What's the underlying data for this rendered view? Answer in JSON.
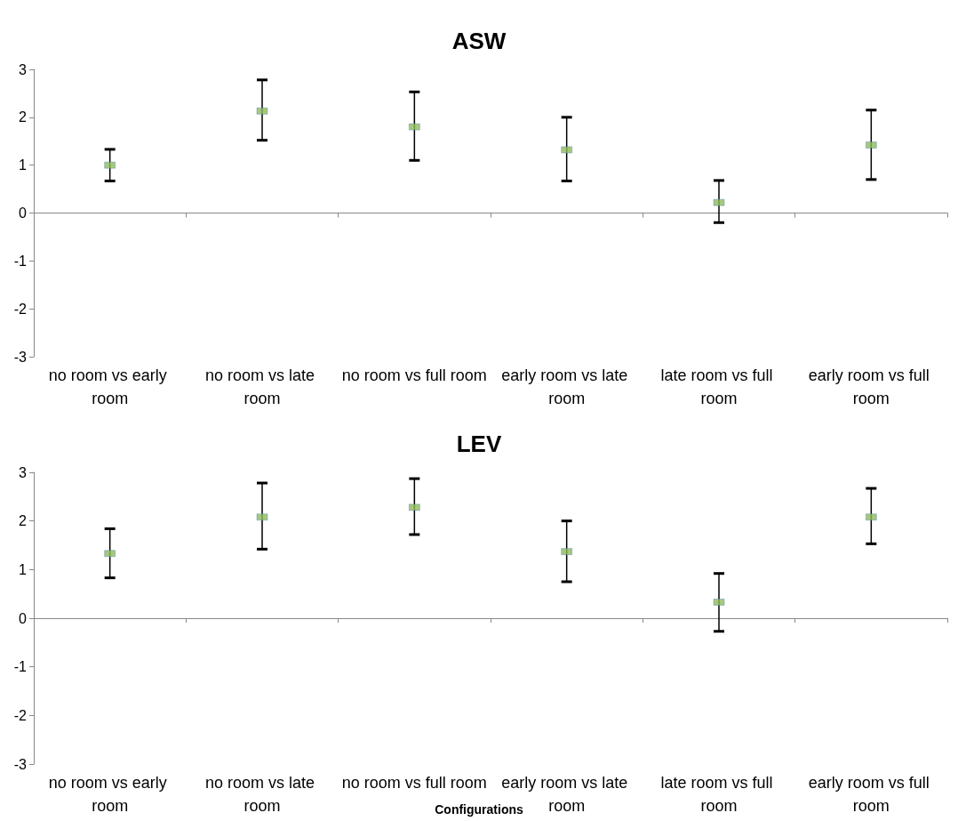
{
  "chart_data": [
    {
      "type": "scatter",
      "title": "ASW",
      "categories": [
        "no room vs early room",
        "no room vs late room",
        "no room vs full room",
        "early room vs late room",
        "late room vs full room",
        "early room vs full room"
      ],
      "series": [
        {
          "color": "#8fbc5a",
          "values": [
            1.0,
            2.13,
            1.8,
            1.32,
            0.22,
            1.42
          ],
          "errors": [
            [
              0.67,
              1.33
            ],
            [
              1.52,
              2.78
            ],
            [
              1.1,
              2.53
            ],
            [
              0.67,
              2.0
            ],
            [
              -0.2,
              0.68
            ],
            [
              0.7,
              2.15
            ]
          ]
        }
      ],
      "ylim": [
        -3,
        3
      ],
      "yticks": [
        -3,
        -2,
        -1,
        0,
        1,
        2,
        3
      ],
      "marker": "square"
    },
    {
      "type": "scatter",
      "title": "LEV",
      "xlabel": "Configurations",
      "categories": [
        "no room vs early room",
        "no room vs late room",
        "no room vs full room",
        "early room vs late room",
        "late room vs full room",
        "early room vs full room"
      ],
      "series": [
        {
          "color": "#8fbc5a",
          "values": [
            1.33,
            2.08,
            2.28,
            1.37,
            0.33,
            2.08
          ],
          "errors": [
            [
              0.83,
              1.84
            ],
            [
              1.42,
              2.78
            ],
            [
              1.72,
              2.87
            ],
            [
              0.75,
              2.0
            ],
            [
              -0.27,
              0.92
            ],
            [
              1.53,
              2.67
            ]
          ]
        }
      ],
      "ylim": [
        -3,
        3
      ],
      "yticks": [
        -3,
        -2,
        -1,
        0,
        1,
        2,
        3
      ],
      "marker": "square"
    }
  ]
}
